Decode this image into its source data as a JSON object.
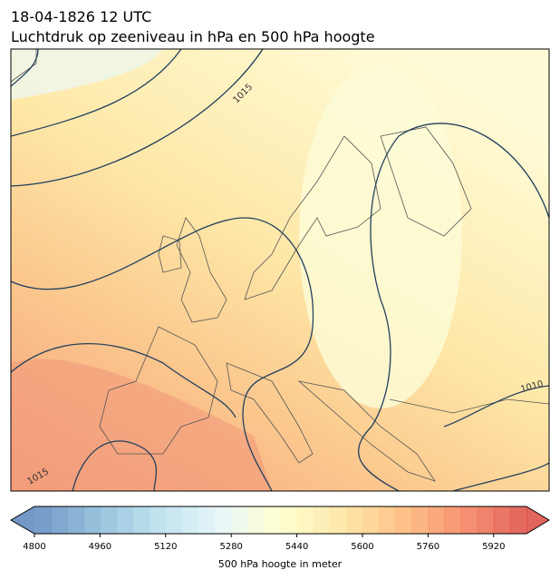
{
  "header": {
    "title": "18-04-1826 12 UTC",
    "subtitle": "Luchtdruk op zeeniveau in hPa en 500 hPa hoogte"
  },
  "map": {
    "contour_labels": [
      "1015",
      "1015",
      "1010"
    ]
  },
  "colorbar": {
    "label": "500 hPa hoogte in meter",
    "lim": [
      4800,
      6000
    ],
    "ticks": [
      4800,
      4960,
      5120,
      5280,
      5440,
      5600,
      5760,
      5920
    ]
  }
}
